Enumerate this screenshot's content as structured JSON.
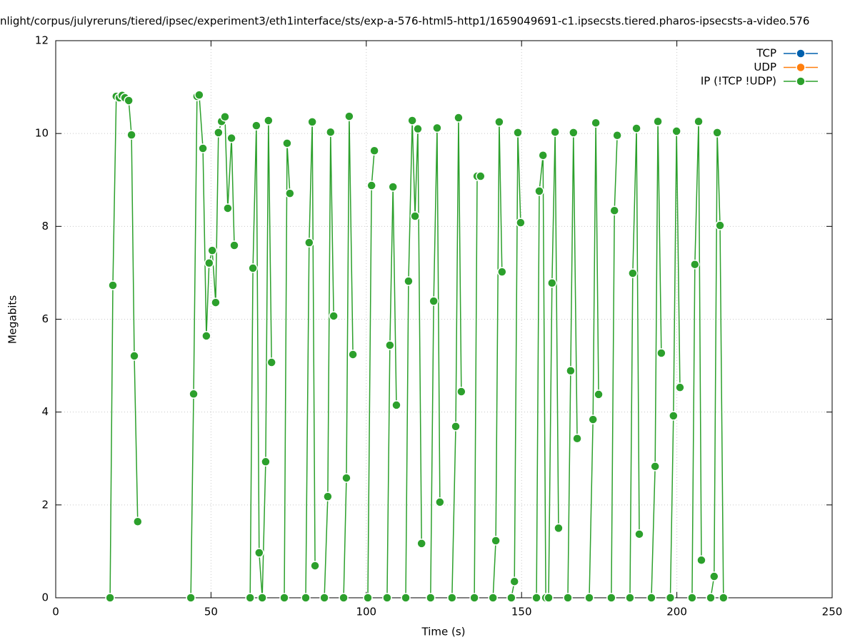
{
  "chart_data": {
    "type": "line",
    "title": "nlight/corpus/julyreruns/tiered/ipsec/experiment3/eth1interface/sts/exp-a-576-html5-http1/1659049691-c1.ipsecsts.tiered.pharos-ipsecsts-a-video.576",
    "xlabel": "Time (s)",
    "ylabel": "Megabits",
    "xlim": [
      0,
      250
    ],
    "xticks": [
      0,
      50,
      100,
      150,
      200,
      250
    ],
    "ylim": [
      0,
      12
    ],
    "yticks": [
      0,
      2,
      4,
      6,
      8,
      10,
      12
    ],
    "grid": true,
    "legend": "top-right",
    "series": [
      {
        "name": "TCP",
        "color": "#0060ad",
        "x": [],
        "values": []
      },
      {
        "name": "UDP",
        "color": "#ff7f0e",
        "x": [],
        "values": []
      },
      {
        "name": "IP (!TCP  !UDP)",
        "color": "#2ca02c",
        "x": [
          17.5,
          18.4,
          19.5,
          20.5,
          21.4,
          22.3,
          23.5,
          24.4,
          25.3,
          26.4,
          null,
          43.5,
          44.4,
          45.5,
          46.2,
          47.4,
          48.5,
          49.4,
          50.4,
          51.5,
          52.4,
          53.4,
          54.5,
          55.4,
          56.6,
          57.5,
          null,
          62.6,
          63.5,
          64.6,
          65.5,
          66.5,
          67.6,
          68.5,
          69.5,
          null,
          73.6,
          74.5,
          75.4,
          null,
          80.5,
          81.6,
          82.6,
          83.5,
          null,
          86.5,
          87.6,
          88.5,
          89.5,
          null,
          92.7,
          93.6,
          94.5,
          95.7,
          null,
          100.5,
          101.7,
          102.6,
          null,
          106.7,
          107.6,
          108.6,
          109.7,
          null,
          112.7,
          113.6,
          114.8,
          115.7,
          116.6,
          117.8,
          null,
          120.7,
          121.7,
          122.8,
          123.7,
          null,
          127.6,
          128.8,
          129.7,
          130.6,
          null,
          134.8,
          135.7,
          136.8,
          null,
          140.8,
          141.7,
          142.8,
          143.7,
          null,
          146.7,
          147.7,
          148.8,
          149.7,
          null,
          154.8,
          155.7,
          156.9,
          157.8,
          158.7,
          159.8,
          160.8,
          161.9,
          null,
          164.9,
          165.8,
          166.7,
          167.9,
          null,
          171.8,
          173,
          173.9,
          174.8,
          null,
          178.9,
          179.9,
          180.8,
          null,
          184.9,
          185.8,
          187,
          187.9,
          null,
          191.8,
          193,
          193.9,
          195,
          null,
          197.9,
          198.9,
          199.9,
          201,
          null,
          204.9,
          205.8,
          207,
          207.9,
          null,
          210.9,
          212,
          213,
          213.9,
          215
        ],
        "values": [
          0,
          6.73,
          10.8,
          10.77,
          10.82,
          10.77,
          10.71,
          9.97,
          5.21,
          1.64,
          null,
          0,
          4.39,
          10.8,
          10.83,
          9.68,
          5.64,
          7.21,
          7.48,
          6.36,
          10.02,
          10.26,
          10.36,
          8.39,
          9.9,
          7.59,
          null,
          0,
          7.1,
          10.17,
          0.97,
          0,
          2.93,
          10.28,
          5.07,
          null,
          0,
          9.79,
          8.71,
          null,
          0,
          7.65,
          10.25,
          0.69,
          null,
          0,
          2.18,
          10.03,
          6.07,
          null,
          0,
          2.58,
          10.37,
          5.24,
          null,
          0,
          8.88,
          9.63,
          null,
          0,
          5.44,
          8.85,
          4.15,
          null,
          0,
          6.82,
          10.28,
          8.22,
          10.1,
          1.17,
          null,
          0,
          6.39,
          10.12,
          2.06,
          null,
          0,
          3.69,
          10.34,
          4.44,
          null,
          0,
          9.08,
          9.08,
          null,
          0,
          1.23,
          10.25,
          7.02,
          null,
          0,
          0.35,
          10.02,
          8.08,
          null,
          0,
          8.76,
          9.53,
          0,
          0,
          6.78,
          10.03,
          1.5,
          null,
          0,
          4.89,
          10.02,
          3.43,
          null,
          0,
          3.84,
          10.23,
          4.38,
          null,
          0,
          8.34,
          9.96,
          null,
          0,
          6.99,
          10.11,
          1.37,
          null,
          0,
          2.83,
          10.26,
          5.27,
          null,
          0,
          3.92,
          10.05,
          4.53,
          null,
          0,
          7.18,
          10.26,
          0.81,
          null,
          0,
          0.46,
          10.02,
          8.02,
          0
        ]
      }
    ]
  }
}
